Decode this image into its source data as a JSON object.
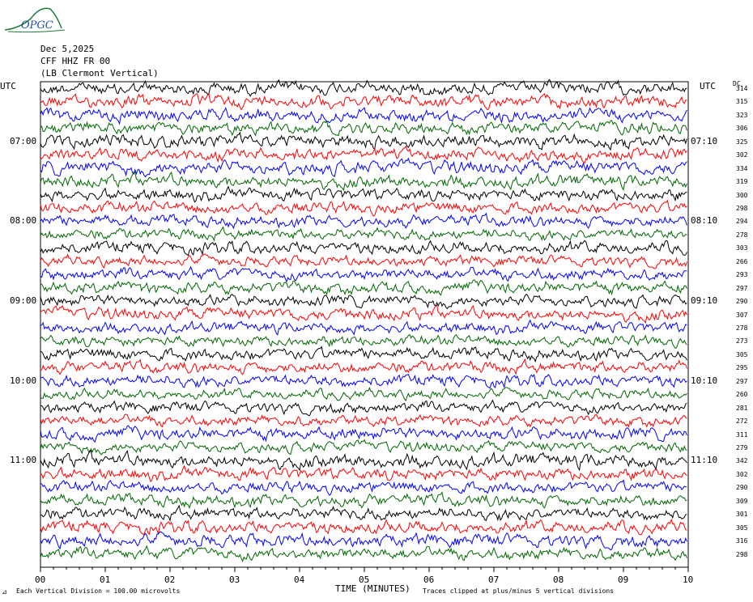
{
  "logo": {
    "text": "OPGC"
  },
  "header": {
    "date": "Dec 5,2025",
    "station": "CFF HHZ FR 00",
    "location": "(LB  Clermont Vertical)"
  },
  "axis": {
    "left_title": "UTC",
    "right_title": "UTC",
    "rms_title": "DC",
    "xlabel": "TIME (MINUTES)",
    "xticks": [
      "00",
      "01",
      "02",
      "03",
      "04",
      "05",
      "06",
      "07",
      "08",
      "09",
      "10"
    ],
    "left_hour_labels": [
      "07:00",
      "08:00",
      "09:00",
      "10:00",
      "11:00"
    ],
    "right_hour_labels": [
      "07:10",
      "08:10",
      "09:10",
      "10:10",
      "11:10"
    ]
  },
  "footer": {
    "scale_note": "Each Vertical Division =  100.00 microvolts",
    "clip_note": "Traces clipped at plus/minus 5 vertical divisions"
  },
  "chart_data": {
    "type": "line",
    "title": "",
    "xlabel": "TIME (MINUTES)",
    "xlim": [
      0,
      10
    ],
    "start_time_utc": "06:20",
    "line_interval_minutes": 10,
    "color_cycle": [
      "#000000",
      "#ff0000",
      "#0000ff",
      "#006600"
    ],
    "rms_values": [
      314,
      315,
      323,
      306,
      325,
      302,
      334,
      319,
      300,
      298,
      294,
      278,
      303,
      266,
      293,
      297,
      290,
      307,
      278,
      273,
      305,
      295,
      297,
      260,
      281,
      272,
      311,
      279,
      342,
      302,
      290,
      309,
      301,
      305,
      316,
      298
    ]
  }
}
